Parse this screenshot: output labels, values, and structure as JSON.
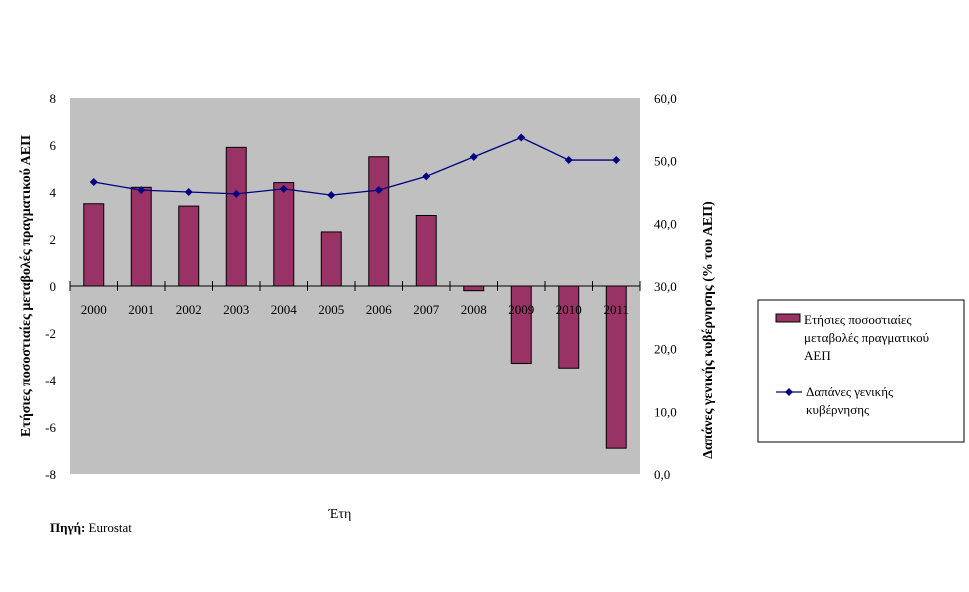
{
  "chart_data": {
    "type": "bar+line",
    "categories": [
      "2000",
      "2001",
      "2002",
      "2003",
      "2004",
      "2005",
      "2006",
      "2007",
      "2008",
      "2009",
      "2010",
      "2011"
    ],
    "series": [
      {
        "name": "Ετήσιες ποσοστιαίες μεταβολές πραγματικού ΑΕΠ",
        "type": "bar",
        "axis": "left",
        "color": "#993366",
        "values": [
          3.5,
          4.2,
          3.4,
          5.9,
          4.4,
          2.3,
          5.5,
          3.0,
          -0.2,
          -3.3,
          -3.5,
          -6.9
        ]
      },
      {
        "name": "Δαπάνες γενικής κυβέρνησης",
        "type": "line",
        "axis": "right",
        "color": "#000080",
        "values": [
          46.6,
          45.3,
          45.0,
          44.7,
          45.5,
          44.5,
          45.3,
          47.5,
          50.6,
          53.7,
          50.1,
          50.1
        ]
      }
    ],
    "xlabel": "Έτη",
    "ylabel": "Ετήσιες ποσοστιαίες μεταβολές πραγματικού ΑΕΠ",
    "y2label": "Δαπάνες γενικής κυβέρνησης (% του ΑΕΠ)",
    "ylim": [
      -8,
      8
    ],
    "yticks": [
      "-8",
      "-6",
      "-4",
      "-2",
      "0",
      "2",
      "4",
      "6",
      "8"
    ],
    "y2lim": [
      0,
      60
    ],
    "y2ticks": [
      "0,0",
      "10,0",
      "20,0",
      "30,0",
      "40,0",
      "50,0",
      "60,0"
    ],
    "grid": false,
    "legend": "right",
    "plot_bg": "#C0C0C0"
  },
  "legend_lines": {
    "bar": [
      "Ετήσιες ποσοστιαίες",
      "μεταβολές πραγματικού",
      "ΑΕΠ"
    ],
    "line": [
      "Δαπάνες γενικής",
      "κυβέρνησης"
    ]
  },
  "source": {
    "label": "Πηγή:",
    "value": "Eurostat"
  }
}
